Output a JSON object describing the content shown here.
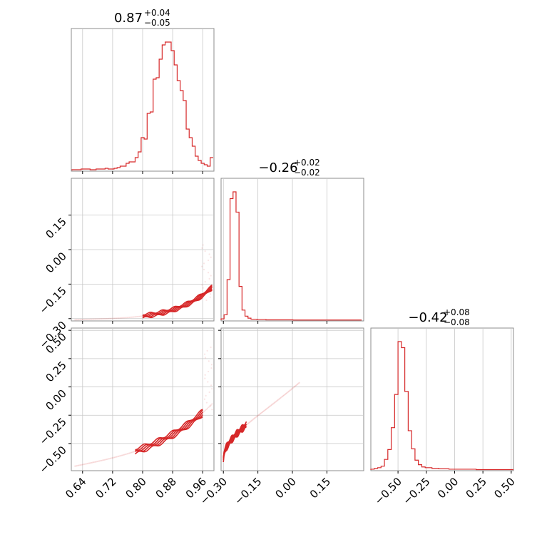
{
  "chart_data": {
    "type": "corner",
    "color": "#d62728",
    "grid": true,
    "parameters": [
      {
        "title": {
          "value": "0.87",
          "upper": "+0.04",
          "lower": "−0.05"
        },
        "range": [
          0.61,
          0.99
        ],
        "ticks": [
          0.64,
          0.72,
          0.8,
          0.88,
          0.96
        ],
        "tick_labels": [
          "0.64",
          "0.72",
          "0.80",
          "0.88",
          "0.96"
        ],
        "histogram": {
          "bins": [
            0.612,
            0.62,
            0.628,
            0.636,
            0.644,
            0.652,
            0.66,
            0.668,
            0.676,
            0.684,
            0.692,
            0.7,
            0.708,
            0.716,
            0.724,
            0.732,
            0.74,
            0.748,
            0.756,
            0.764,
            0.772,
            0.78,
            0.788,
            0.796,
            0.804,
            0.812,
            0.82,
            0.828,
            0.836,
            0.844,
            0.852,
            0.86,
            0.868,
            0.876,
            0.884,
            0.892,
            0.9,
            0.908,
            0.916,
            0.924,
            0.932,
            0.94,
            0.948,
            0.956,
            0.964,
            0.972,
            0.98,
            0.988
          ],
          "counts": [
            0.5,
            0.5,
            0.5,
            1,
            1,
            1,
            0.5,
            0.5,
            1,
            1,
            1,
            1.5,
            1,
            1,
            1.5,
            2,
            3,
            3,
            5,
            6,
            6,
            9,
            13,
            23,
            22,
            40,
            41,
            64,
            65,
            78,
            88,
            90,
            90,
            84,
            74,
            63,
            56,
            49,
            29,
            23,
            17,
            10,
            7,
            5,
            4,
            3,
            9
          ]
        }
      },
      {
        "title": {
          "value": "−0.26",
          "upper": "+0.02",
          "lower": "−0.02"
        },
        "range": [
          -0.31,
          0.31
        ],
        "ticks": [
          -0.3,
          -0.15,
          0.0,
          0.15
        ],
        "tick_labels": [
          "−0.30",
          "−0.15",
          "0.00",
          "0.15"
        ],
        "y_tick_labels": [
          "−0.30",
          "−0.15",
          "0.00",
          "0.15"
        ],
        "histogram": {
          "bins": [
            -0.31,
            -0.297,
            -0.284,
            -0.271,
            -0.258,
            -0.245,
            -0.232,
            -0.219,
            -0.206,
            -0.193,
            -0.18,
            -0.167,
            -0.154,
            -0.141,
            -0.128,
            -0.115,
            -0.102,
            -0.089,
            -0.076,
            -0.063,
            -0.05,
            -0.037,
            -0.024,
            -0.011,
            0.002,
            0.015,
            0.028,
            0.041,
            0.054,
            0.067,
            0.08,
            0.093,
            0.106,
            0.119,
            0.132,
            0.145,
            0.158,
            0.171,
            0.184,
            0.197,
            0.21,
            0.223,
            0.236,
            0.249,
            0.262,
            0.275,
            0.288,
            0.301
          ],
          "counts": [
            2,
            8,
            60,
            180,
            190,
            160,
            50,
            15,
            6,
            3,
            1.5,
            1.5,
            1,
            1,
            1,
            0.5,
            0.5,
            0.5,
            0.5,
            0.5,
            0.5,
            0.5,
            0.5,
            0.5,
            0.3,
            0.3,
            0.3,
            0.3,
            0.3,
            0.3,
            0.3,
            0.3,
            0.3,
            0.3,
            0.3,
            0.3,
            0.3,
            0.3,
            0.3,
            0.3,
            0.3,
            0.3,
            0.3,
            0.3,
            0.3,
            0.3,
            0.3
          ]
        }
      },
      {
        "title": {
          "value": "−0.42",
          "upper": "+0.08",
          "lower": "−0.08"
        },
        "range": [
          -0.74,
          0.52
        ],
        "ticks": [
          -0.5,
          -0.25,
          0.0,
          0.25,
          0.5
        ],
        "tick_labels": [
          "−0.50",
          "−0.25",
          "0.00",
          "0.25",
          "0.50"
        ],
        "histogram": {
          "bins": [
            -0.74,
            -0.71,
            -0.68,
            -0.65,
            -0.62,
            -0.59,
            -0.56,
            -0.53,
            -0.5,
            -0.47,
            -0.44,
            -0.41,
            -0.38,
            -0.35,
            -0.32,
            -0.29,
            -0.26,
            -0.23,
            -0.2,
            -0.17,
            -0.14,
            -0.11,
            -0.08,
            -0.05,
            -0.02,
            0.01,
            0.04,
            0.07,
            0.1,
            0.13,
            0.16,
            0.19,
            0.22,
            0.25,
            0.28,
            0.31,
            0.34,
            0.37,
            0.4,
            0.43,
            0.46,
            0.49
          ],
          "counts": [
            1,
            2,
            3,
            5,
            14,
            27,
            56,
            100,
            170,
            162,
            104,
            52,
            28,
            13,
            7,
            4,
            3,
            3,
            2,
            2,
            1.5,
            1.5,
            1.5,
            1,
            1,
            1,
            1,
            1,
            1,
            1,
            1,
            0.5,
            0.5,
            0.5,
            0.5,
            0.5,
            0.5,
            0.5,
            0.5,
            0.5,
            0.5,
            0.5
          ]
        }
      }
    ]
  }
}
